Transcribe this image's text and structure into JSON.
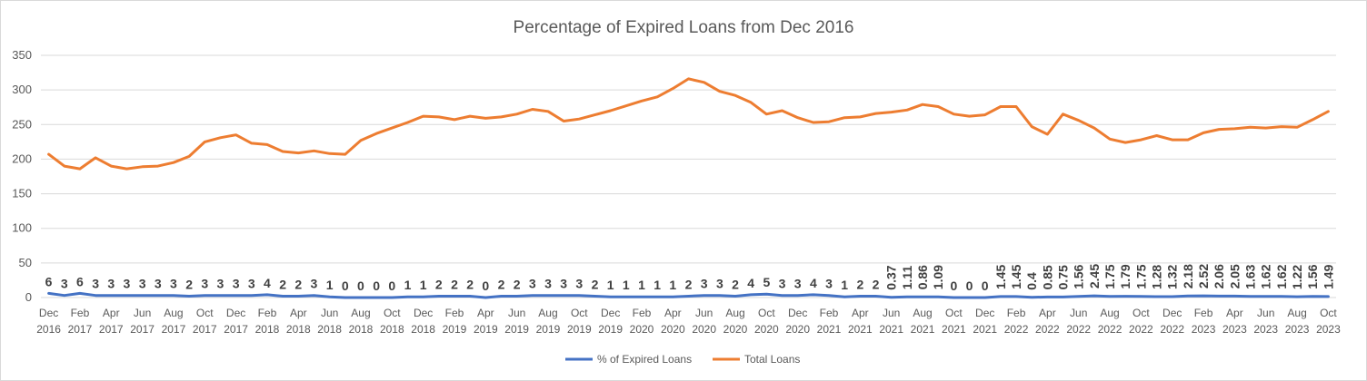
{
  "chart_data": {
    "type": "line",
    "title": "Percentage of Expired Loans from Dec 2016",
    "ylim": [
      0,
      350
    ],
    "yticks": [
      "0",
      "50",
      "100",
      "150",
      "200",
      "250",
      "300",
      "350"
    ],
    "grid": true,
    "legend_position": "bottom",
    "x": [
      "Dec 2016",
      "Jan 2017",
      "Feb 2017",
      "Mar 2017",
      "Apr 2017",
      "May 2017",
      "Jun 2017",
      "Jul 2017",
      "Aug 2017",
      "Sep 2017",
      "Oct 2017",
      "Nov 2017",
      "Dec 2017",
      "Jan 2018",
      "Feb 2018",
      "Mar 2018",
      "Apr 2018",
      "May 2018",
      "Jun 2018",
      "Jul 2018",
      "Aug 2018",
      "Sep 2018",
      "Oct 2018",
      "Nov 2018",
      "Dec 2018",
      "Jan 2019",
      "Feb 2019",
      "Mar 2019",
      "Apr 2019",
      "May 2019",
      "Jun 2019",
      "Jul 2019",
      "Aug 2019",
      "Sep 2019",
      "Oct 2019",
      "Nov 2019",
      "Dec 2019",
      "Jan 2020",
      "Feb 2020",
      "Mar 2020",
      "Apr 2020",
      "May 2020",
      "Jun 2020",
      "Jul 2020",
      "Aug 2020",
      "Sep 2020",
      "Oct 2020",
      "Nov 2020",
      "Dec 2020",
      "Jan 2021",
      "Feb 2021",
      "Mar 2021",
      "Apr 2021",
      "May 2021",
      "Jun 2021",
      "Jul 2021",
      "Aug 2021",
      "Sep 2021",
      "Oct 2021",
      "Nov 2021",
      "Dec 2021",
      "Jan 2022",
      "Feb 2022",
      "Mar 2022",
      "Apr 2022",
      "May 2022",
      "Jun 2022",
      "Jul 2022",
      "Aug 2022",
      "Sep 2022",
      "Oct 2022",
      "Nov 2022",
      "Dec 2022",
      "Jan 2023",
      "Feb 2023",
      "Mar 2023",
      "Apr 2023",
      "May 2023",
      "Jun 2023",
      "Jul 2023",
      "Aug 2023",
      "Sep 2023",
      "Oct 2023"
    ],
    "xtick_labels": [
      {
        "index": 0,
        "line1": "Dec",
        "line2": "2016"
      },
      {
        "index": 2,
        "line1": "Feb",
        "line2": "2017"
      },
      {
        "index": 4,
        "line1": "Apr",
        "line2": "2017"
      },
      {
        "index": 6,
        "line1": "Jun",
        "line2": "2017"
      },
      {
        "index": 8,
        "line1": "Aug",
        "line2": "2017"
      },
      {
        "index": 10,
        "line1": "Oct",
        "line2": "2017"
      },
      {
        "index": 12,
        "line1": "Dec",
        "line2": "2017"
      },
      {
        "index": 14,
        "line1": "Feb",
        "line2": "2018"
      },
      {
        "index": 16,
        "line1": "Apr",
        "line2": "2018"
      },
      {
        "index": 18,
        "line1": "Jun",
        "line2": "2018"
      },
      {
        "index": 20,
        "line1": "Aug",
        "line2": "2018"
      },
      {
        "index": 22,
        "line1": "Oct",
        "line2": "2018"
      },
      {
        "index": 24,
        "line1": "Dec",
        "line2": "2018"
      },
      {
        "index": 26,
        "line1": "Feb",
        "line2": "2019"
      },
      {
        "index": 28,
        "line1": "Apr",
        "line2": "2019"
      },
      {
        "index": 30,
        "line1": "Jun",
        "line2": "2019"
      },
      {
        "index": 32,
        "line1": "Aug",
        "line2": "2019"
      },
      {
        "index": 34,
        "line1": "Oct",
        "line2": "2019"
      },
      {
        "index": 36,
        "line1": "Dec",
        "line2": "2019"
      },
      {
        "index": 38,
        "line1": "Feb",
        "line2": "2020"
      },
      {
        "index": 40,
        "line1": "Apr",
        "line2": "2020"
      },
      {
        "index": 42,
        "line1": "Jun",
        "line2": "2020"
      },
      {
        "index": 44,
        "line1": "Aug",
        "line2": "2020"
      },
      {
        "index": 46,
        "line1": "Oct",
        "line2": "2020"
      },
      {
        "index": 48,
        "line1": "Dec",
        "line2": "2020"
      },
      {
        "index": 50,
        "line1": "Feb",
        "line2": "2021"
      },
      {
        "index": 52,
        "line1": "Apr",
        "line2": "2021"
      },
      {
        "index": 54,
        "line1": "Jun",
        "line2": "2021"
      },
      {
        "index": 56,
        "line1": "Aug",
        "line2": "2021"
      },
      {
        "index": 58,
        "line1": "Oct",
        "line2": "2021"
      },
      {
        "index": 60,
        "line1": "Dec",
        "line2": "2021"
      },
      {
        "index": 62,
        "line1": "Feb",
        "line2": "2022"
      },
      {
        "index": 64,
        "line1": "Apr",
        "line2": "2022"
      },
      {
        "index": 66,
        "line1": "Jun",
        "line2": "2022"
      },
      {
        "index": 68,
        "line1": "Aug",
        "line2": "2022"
      },
      {
        "index": 70,
        "line1": "Oct",
        "line2": "2022"
      },
      {
        "index": 72,
        "line1": "Dec",
        "line2": "2022"
      },
      {
        "index": 74,
        "line1": "Feb",
        "line2": "2023"
      },
      {
        "index": 76,
        "line1": "Apr",
        "line2": "2023"
      },
      {
        "index": 78,
        "line1": "Jun",
        "line2": "2023"
      },
      {
        "index": 80,
        "line1": "Aug",
        "line2": "2023"
      },
      {
        "index": 82,
        "line1": "Oct",
        "line2": "2023"
      }
    ],
    "series": [
      {
        "name": "% of Expired Loans",
        "color": "#4472C4",
        "values": [
          6,
          3,
          6,
          3,
          3,
          3,
          3,
          3,
          3,
          2,
          3,
          3,
          3,
          3,
          4,
          2,
          2,
          3,
          1,
          0,
          0,
          0,
          0,
          1,
          1,
          2,
          2,
          2,
          0,
          2,
          2,
          3,
          3,
          3,
          3,
          2,
          1,
          1,
          1,
          1,
          1,
          2,
          3,
          3,
          2,
          4,
          5,
          3,
          3,
          4,
          3,
          1,
          2,
          2,
          0.37,
          1.11,
          0.86,
          1.09,
          0,
          0,
          0,
          1.45,
          1.45,
          0.4,
          0.85,
          0.75,
          1.56,
          2.45,
          1.75,
          1.79,
          1.75,
          1.28,
          1.32,
          2.18,
          2.52,
          2.06,
          2.05,
          1.63,
          1.62,
          1.62,
          1.22,
          1.56,
          1.49
        ],
        "labels": [
          "6",
          "3",
          "6",
          "3",
          "3",
          "3",
          "3",
          "3",
          "3",
          "2",
          "3",
          "3",
          "3",
          "3",
          "4",
          "2",
          "2",
          "3",
          "1",
          "0",
          "0",
          "0",
          "0",
          "1",
          "1",
          "2",
          "2",
          "2",
          "0",
          "2",
          "2",
          "3",
          "3",
          "3",
          "3",
          "2",
          "1",
          "1",
          "1",
          "1",
          "1",
          "2",
          "3",
          "3",
          "2",
          "4",
          "5",
          "3",
          "3",
          "4",
          "3",
          "1",
          "2",
          "2",
          "0.37",
          "1.11",
          "0.86",
          "1.09",
          "0",
          "0",
          "0",
          "1.45",
          "1.45",
          "0.4",
          "0.85",
          "0.75",
          "1.56",
          "2.45",
          "1.75",
          "1.79",
          "1.75",
          "1.28",
          "1.32",
          "2.18",
          "2.52",
          "2.06",
          "2.05",
          "1.63",
          "1.62",
          "1.62",
          "1.22",
          "1.56",
          "1.49"
        ]
      },
      {
        "name": "Total Loans",
        "color": "#ED7D31",
        "values": [
          207,
          190,
          186,
          202,
          190,
          186,
          189,
          190,
          195,
          204,
          225,
          231,
          235,
          223,
          221,
          211,
          209,
          212,
          208,
          207,
          227,
          237,
          245,
          253,
          262,
          261,
          257,
          262,
          259,
          261,
          265,
          272,
          269,
          255,
          258,
          264,
          270,
          277,
          284,
          290,
          302,
          316,
          311,
          298,
          292,
          282,
          265,
          270,
          260,
          253,
          254,
          260,
          261,
          266,
          268,
          271,
          279,
          276,
          265,
          262,
          264,
          276,
          276,
          247,
          236,
          265,
          256,
          245,
          229,
          224,
          228,
          234,
          228,
          228,
          238,
          243,
          244,
          246,
          245,
          247,
          246,
          257,
          269
        ]
      }
    ]
  }
}
